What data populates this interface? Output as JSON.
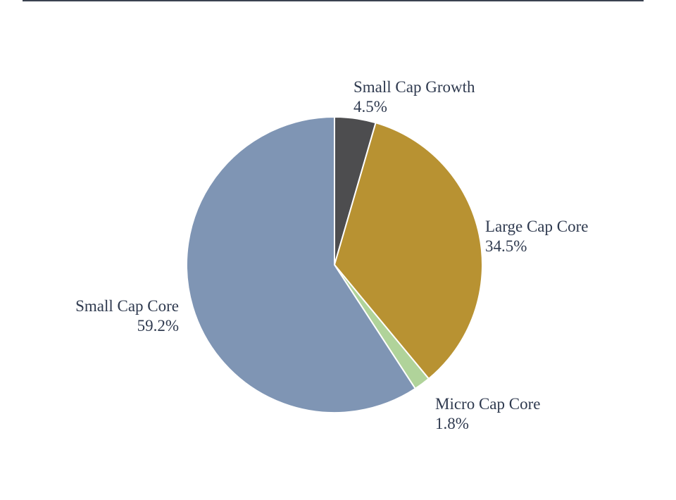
{
  "chart_data": {
    "type": "pie",
    "title": "",
    "start_angle": "12 o'clock, clockwise",
    "slices": [
      {
        "label": "Small Cap Growth",
        "value": 4.5,
        "value_label": "4.5%",
        "color": "#4d4d4f"
      },
      {
        "label": "Large Cap Core",
        "value": 34.5,
        "value_label": "34.5%",
        "color": "#b89232"
      },
      {
        "label": "Micro Cap Core",
        "value": 1.8,
        "value_label": "1.8%",
        "color": "#b0d39a"
      },
      {
        "label": "Small Cap Core",
        "value": 59.2,
        "value_label": "59.2%",
        "color": "#7f95b4"
      }
    ],
    "legend": "none",
    "slice_border_color": "#ffffff",
    "label_color": "#2f3a4f"
  },
  "page": {
    "rule_color": "#3a4250"
  }
}
